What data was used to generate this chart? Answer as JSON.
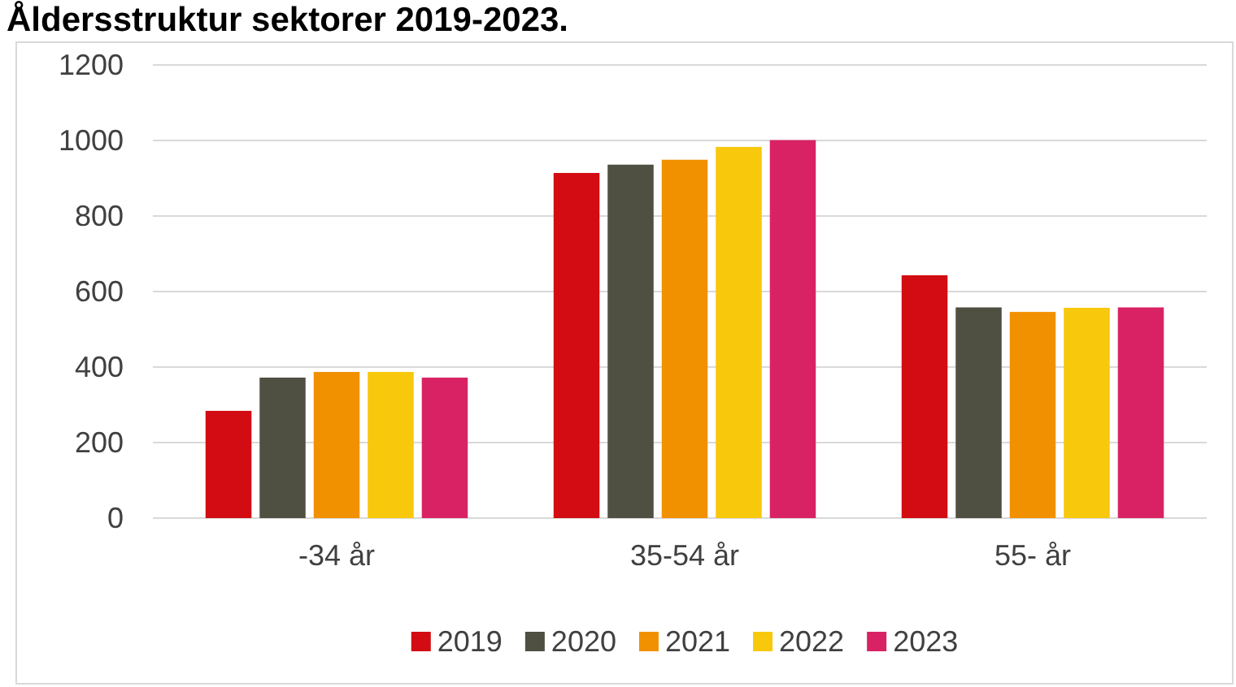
{
  "chart_data": {
    "type": "bar",
    "title": "Åldersstruktur sektorer 2019-2023.",
    "categories": [
      "-34 år",
      "35-54 år",
      "55- år"
    ],
    "series": [
      {
        "name": "2019",
        "color": "#d20c12",
        "values": [
          284,
          914,
          643
        ]
      },
      {
        "name": "2020",
        "color": "#4f4f42",
        "values": [
          372,
          936,
          558
        ]
      },
      {
        "name": "2021",
        "color": "#f29100",
        "values": [
          387,
          949,
          546
        ]
      },
      {
        "name": "2022",
        "color": "#f8c80c",
        "values": [
          387,
          983,
          557
        ]
      },
      {
        "name": "2023",
        "color": "#d92264",
        "values": [
          372,
          1001,
          558
        ]
      }
    ],
    "ylim": [
      0,
      1200
    ],
    "yticks": [
      0,
      200,
      400,
      600,
      800,
      1000,
      1200
    ],
    "grid": "y",
    "legend": "bottom"
  }
}
